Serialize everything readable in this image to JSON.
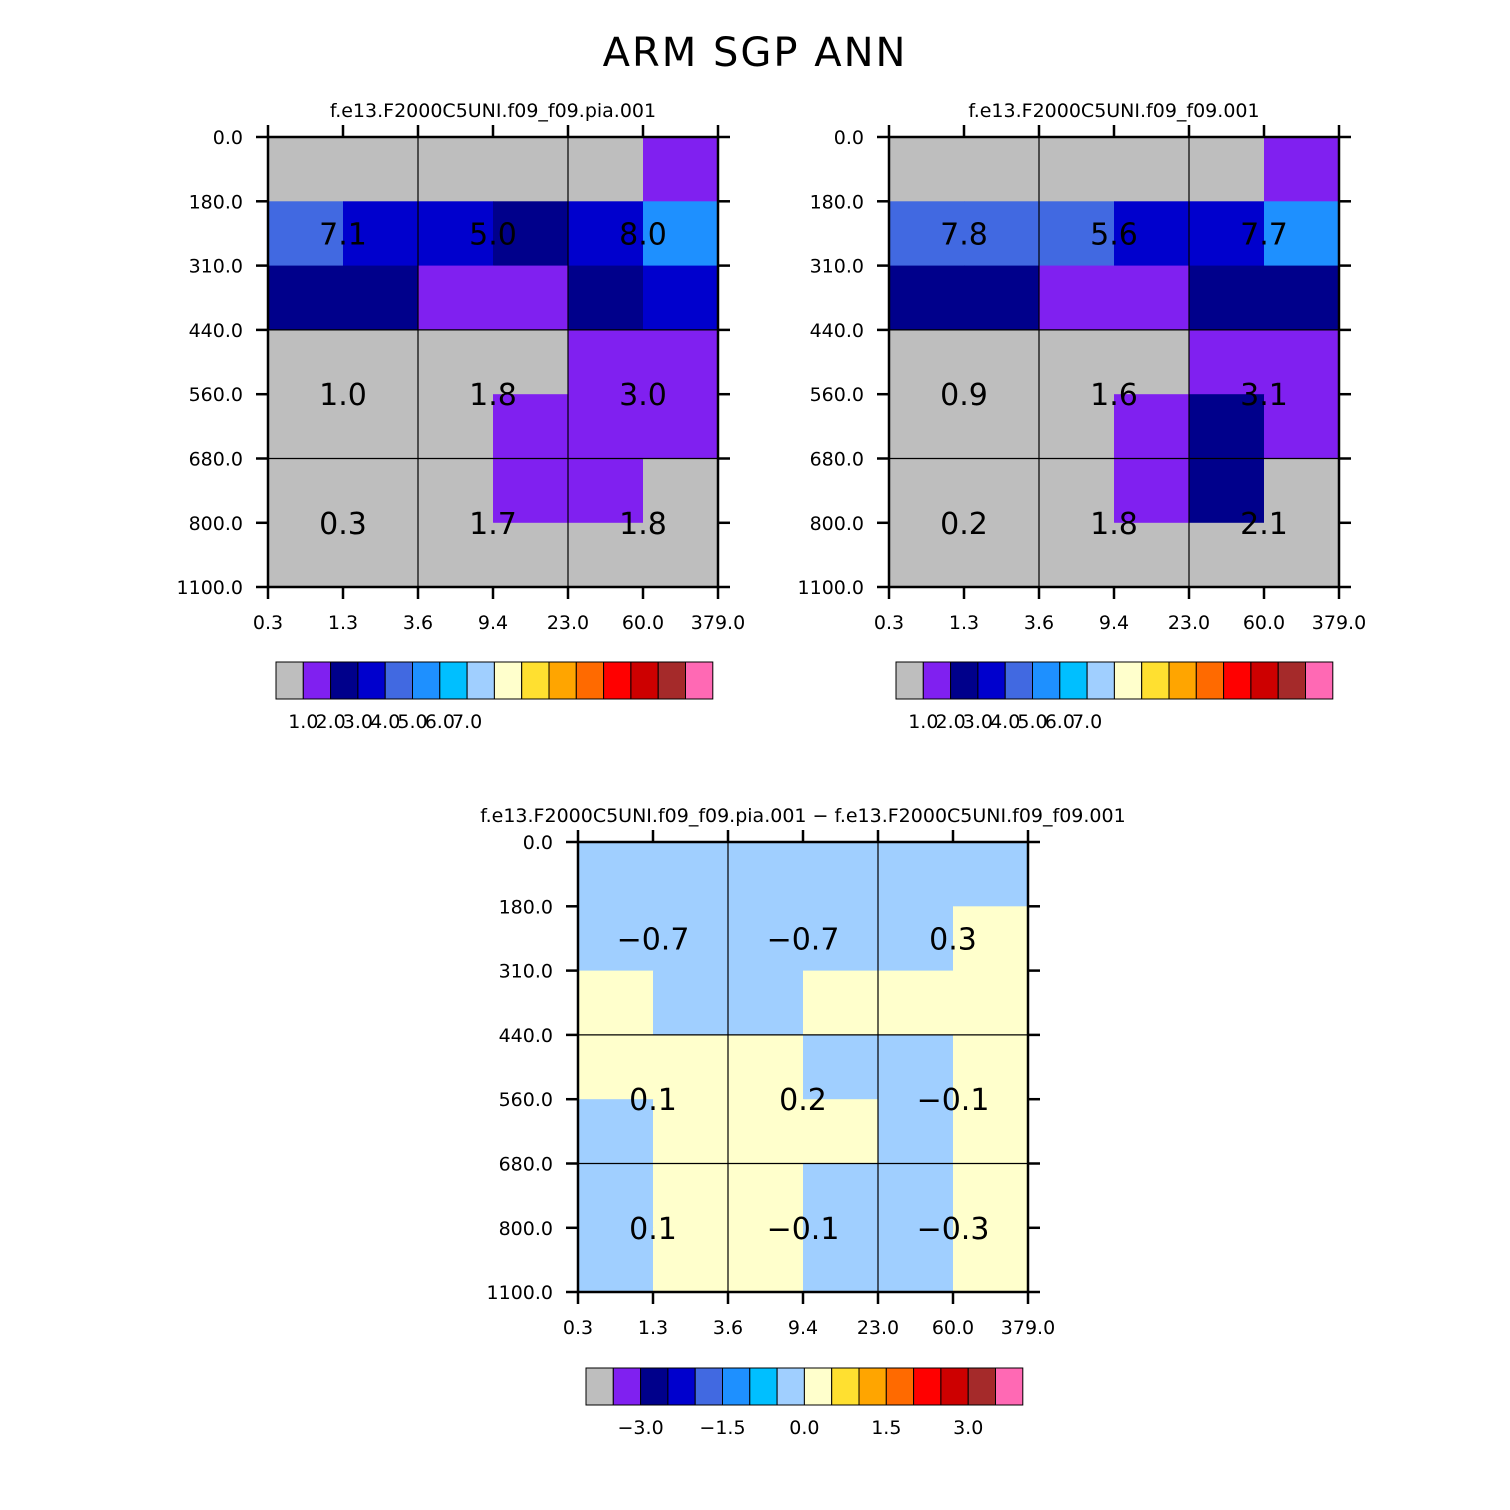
{
  "title": "ARM SGP ANN",
  "colors": {
    "palette": [
      "#bebebe",
      "#8020f0",
      "#00008b",
      "#0000cd",
      "#4169e1",
      "#1e90ff",
      "#00bfff",
      "#a0cfff",
      "#ffffcc",
      "#ffe030",
      "#ffa500",
      "#ff6a00",
      "#ff0000",
      "#cd0000",
      "#a52a2a",
      "#ff69b4"
    ]
  },
  "chart_data": [
    {
      "type": "heatmap",
      "title": "f.e13.F2000C5UNI.f09_f09.pia.001",
      "x_ticks": [
        "0.3",
        "1.3",
        "3.6",
        "9.4",
        "23.0",
        "60.0",
        "379.0"
      ],
      "y_ticks": [
        "0.0",
        "180.0",
        "310.0",
        "440.0",
        "560.0",
        "680.0",
        "800.0",
        "1100.0"
      ],
      "fine_grid_colors": [
        [
          0,
          0,
          0,
          0,
          0,
          1
        ],
        [
          4,
          3,
          3,
          2,
          3,
          5
        ],
        [
          2,
          2,
          1,
          1,
          2,
          3
        ],
        [
          0,
          0,
          0,
          0,
          1,
          1
        ],
        [
          0,
          0,
          0,
          1,
          1,
          1
        ],
        [
          0,
          0,
          0,
          1,
          1,
          0
        ]
      ],
      "cell_labels": [
        [
          "7.1",
          "5.0",
          "8.0"
        ],
        [
          "1.0",
          "1.8",
          "3.0"
        ],
        [
          "0.3",
          "1.7",
          "1.8"
        ]
      ],
      "colorbar_labels": [
        "1.0",
        "2.0",
        "3.0",
        "4.0",
        "5.0",
        "6.0",
        "7.0"
      ]
    },
    {
      "type": "heatmap",
      "title": "f.e13.F2000C5UNI.f09_f09.001",
      "x_ticks": [
        "0.3",
        "1.3",
        "3.6",
        "9.4",
        "23.0",
        "60.0",
        "379.0"
      ],
      "y_ticks": [
        "0.0",
        "180.0",
        "310.0",
        "440.0",
        "560.0",
        "680.0",
        "800.0",
        "1100.0"
      ],
      "fine_grid_colors": [
        [
          0,
          0,
          0,
          0,
          0,
          1
        ],
        [
          4,
          4,
          4,
          3,
          3,
          5
        ],
        [
          2,
          2,
          1,
          1,
          2,
          2
        ],
        [
          0,
          0,
          0,
          0,
          1,
          1
        ],
        [
          0,
          0,
          0,
          1,
          2,
          1
        ],
        [
          0,
          0,
          0,
          1,
          2,
          0
        ]
      ],
      "cell_labels": [
        [
          "7.8",
          "5.6",
          "7.7"
        ],
        [
          "0.9",
          "1.6",
          "3.1"
        ],
        [
          "0.2",
          "1.8",
          "2.1"
        ]
      ],
      "colorbar_labels": [
        "1.0",
        "2.0",
        "3.0",
        "4.0",
        "5.0",
        "6.0",
        "7.0"
      ]
    },
    {
      "type": "heatmap",
      "title": "f.e13.F2000C5UNI.f09_f09.pia.001 − f.e13.F2000C5UNI.f09_f09.001",
      "x_ticks": [
        "0.3",
        "1.3",
        "3.6",
        "9.4",
        "23.0",
        "60.0",
        "379.0"
      ],
      "y_ticks": [
        "0.0",
        "180.0",
        "310.0",
        "440.0",
        "560.0",
        "680.0",
        "800.0",
        "1100.0"
      ],
      "fine_grid_colors": [
        [
          7,
          7,
          7,
          7,
          7,
          7
        ],
        [
          7,
          7,
          7,
          7,
          7,
          8
        ],
        [
          8,
          7,
          7,
          8,
          8,
          8
        ],
        [
          8,
          8,
          8,
          7,
          7,
          8
        ],
        [
          7,
          8,
          8,
          8,
          7,
          8
        ],
        [
          7,
          8,
          8,
          7,
          7,
          8
        ]
      ],
      "cell_labels": [
        [
          "−0.7",
          "−0.7",
          "0.3"
        ],
        [
          "0.1",
          "0.2",
          "−0.1"
        ],
        [
          "0.1",
          "−0.1",
          "−0.3"
        ]
      ],
      "colorbar_labels": [
        "−3.0",
        "−1.5",
        "0.0",
        "1.5",
        "3.0"
      ]
    }
  ]
}
